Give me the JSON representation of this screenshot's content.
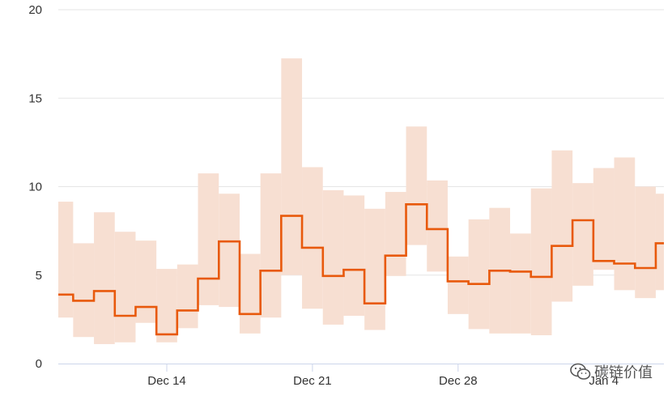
{
  "chart_data": {
    "type": "area",
    "x_axis": {
      "type": "date",
      "tick_labels": [
        "Dec 14",
        "Dec 21",
        "Dec 28",
        "Jan 4"
      ],
      "tick_dates": [
        "2022-12-14",
        "2022-12-21",
        "2022-12-28",
        "2023-01-04"
      ]
    },
    "y_axis": {
      "ylim": [
        0,
        20
      ],
      "ticks": [
        0,
        5,
        10,
        15,
        20
      ],
      "grid": true
    },
    "colors": {
      "line": "#e8590c",
      "band": "#f7dfd2",
      "grid": "#e6e6e6",
      "axis": "#ccd6eb"
    },
    "series": [
      {
        "style": "step",
        "x": [
          "2022-12-09",
          "2022-12-10",
          "2022-12-11",
          "2022-12-12",
          "2022-12-13",
          "2022-12-14",
          "2022-12-15",
          "2022-12-16",
          "2022-12-17",
          "2022-12-18",
          "2022-12-19",
          "2022-12-20",
          "2022-12-21",
          "2022-12-22",
          "2022-12-23",
          "2022-12-24",
          "2022-12-25",
          "2022-12-26",
          "2022-12-27",
          "2022-12-28",
          "2022-12-29",
          "2022-12-30",
          "2022-12-31",
          "2023-01-01",
          "2023-01-02",
          "2023-01-03",
          "2023-01-04",
          "2023-01-05",
          "2023-01-06",
          "2023-01-07"
        ],
        "values": [
          3.9,
          3.55,
          4.1,
          2.7,
          3.2,
          1.65,
          3.0,
          4.8,
          6.9,
          2.8,
          5.25,
          8.35,
          6.55,
          4.95,
          5.3,
          3.4,
          6.1,
          9.0,
          7.6,
          4.65,
          4.5,
          5.25,
          5.2,
          4.9,
          6.65,
          8.1,
          5.8,
          5.65,
          5.4,
          6.8
        ],
        "low": [
          2.6,
          1.5,
          1.1,
          1.2,
          2.3,
          1.2,
          2.0,
          3.3,
          3.2,
          1.7,
          2.6,
          5.0,
          3.1,
          2.2,
          2.7,
          1.9,
          4.95,
          6.7,
          5.2,
          2.8,
          1.95,
          1.7,
          1.7,
          1.6,
          3.5,
          4.4,
          5.3,
          4.15,
          3.7,
          4.15
        ],
        "high": [
          9.15,
          6.8,
          8.55,
          7.45,
          6.95,
          5.35,
          5.6,
          10.75,
          9.6,
          6.2,
          10.75,
          17.25,
          11.1,
          9.8,
          9.5,
          8.75,
          9.7,
          13.4,
          10.35,
          6.05,
          8.15,
          8.8,
          7.35,
          9.9,
          12.05,
          10.2,
          11.05,
          11.65,
          10.0,
          9.6
        ]
      }
    ]
  },
  "watermark": {
    "text": "碳链价值",
    "icon": "wechat-icon"
  }
}
